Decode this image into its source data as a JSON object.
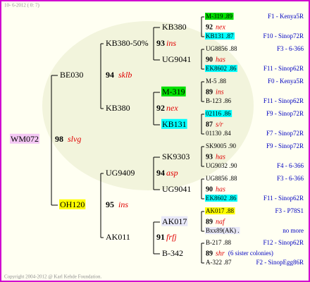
{
  "header": {
    "date": "10- 6-2012 ( 0: 7)"
  },
  "footer": {
    "copyright": "Copyright 2004-2012 @ Karl Kehde Foundation."
  },
  "pedigree": {
    "queen": {
      "name": "WM072",
      "number": 98,
      "line": "slvg",
      "highlight": "#f4c8f4"
    },
    "gen2": [
      {
        "name": "BE030",
        "number": 94,
        "line": "sklb"
      },
      {
        "name": "OH120",
        "number": 95,
        "line": "ins",
        "highlight": "#ffff00"
      }
    ],
    "gen3": [
      {
        "name": "KB380-50%",
        "number": 93,
        "line": "ins"
      },
      {
        "name": "KB380",
        "number": 92,
        "line": "nex"
      },
      {
        "name": "UG9409",
        "number": 94,
        "line": "asp"
      },
      {
        "name": "AK011",
        "number": 91,
        "line": "frfj"
      }
    ],
    "gen4": [
      {
        "name": "KB380",
        "number": 92,
        "line": "nex"
      },
      {
        "name": "UG9041",
        "number": 90,
        "line": "has"
      },
      {
        "name": "M-319",
        "number": 89,
        "line": "ins",
        "highlight": "#00e000"
      },
      {
        "name": "KB131",
        "number": 87,
        "line": "s/r",
        "highlight": "#00ffff"
      },
      {
        "name": "SK9303",
        "number": 93,
        "line": "has"
      },
      {
        "name": "UG9041",
        "number": 90,
        "line": "has"
      },
      {
        "name": "AK017",
        "number": 89,
        "line": "naf",
        "highlight": "#e8e8f8"
      },
      {
        "name": "B-342",
        "number": 89,
        "line": "shr",
        "note": "(6 sister colonies)"
      }
    ],
    "gen5": [
      {
        "name": "M-319 .89",
        "origin": "F1 - Kenya5R",
        "highlight": "#00e000"
      },
      {
        "name": "KB131 .87",
        "origin": "F10 - Sinop72R",
        "highlight": "#00ffff"
      },
      {
        "name": "UG8856 .88",
        "origin": "F3 - 6-366"
      },
      {
        "name": "EK8602 .86",
        "origin": "F11 - Sinop62R",
        "highlight": "#00ffff"
      },
      {
        "name": "M-5 .88",
        "origin": "F0 - Kenya5R"
      },
      {
        "name": "B-123 .86",
        "origin": "F11 - Sinop62R"
      },
      {
        "name": "02116 .86",
        "origin": "F9 - Sinop72R",
        "highlight": "#00ffff"
      },
      {
        "name": "01130 .84",
        "origin": "F7 - Sinop72R"
      },
      {
        "name": "SK9005 .90",
        "origin": "F9 - Sinop72R"
      },
      {
        "name": "UG9032 .90",
        "origin": "F4 - 6-366"
      },
      {
        "name": "UG8856 .88",
        "origin": "F3 - 6-366"
      },
      {
        "name": "EK8602 .86",
        "origin": "F11 - Sinop62R",
        "highlight": "#00ffff"
      },
      {
        "name": "AK017 .88",
        "origin": "F3 - P78S1",
        "highlight": "#ffff00"
      },
      {
        "name": "Bxx89(AK) .",
        "origin": "no more",
        "highlight": "#e8e8f8"
      },
      {
        "name": "B-217 .88",
        "origin": "F12 - Sinop62R"
      },
      {
        "name": "A-322 .87",
        "origin": "F2 - SinopEgg86R"
      }
    ]
  }
}
